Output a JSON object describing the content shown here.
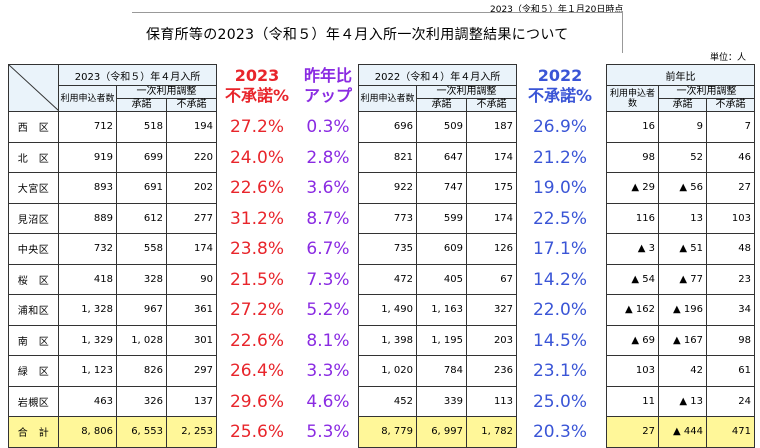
{
  "header": {
    "date": "2023（令和５）年１月20日時点",
    "title": "保育所等の2023（令和５）年４月入所一次利用調整結果について",
    "unit": "単位：人"
  },
  "table2023": {
    "period": "2023（令和５）年４月入所",
    "applicants": "利用申込者数",
    "group": "一次利用調整",
    "approved": "承諾",
    "rejected": "不承諾"
  },
  "table2022": {
    "period": "2022（令和４）年４月入所",
    "applicants": "利用申込者数",
    "group": "一次利用調整",
    "approved": "承諾",
    "rejected": "不承諾"
  },
  "tableDiff": {
    "period": "前年比",
    "applicants": "利用申込者数",
    "group": "一次利用調整",
    "approved": "承諾",
    "rejected": "不承諾"
  },
  "columns": {
    "rate2023": {
      "line1": "2023",
      "line2": "不承諾%"
    },
    "increase": {
      "line1": "昨年比",
      "line2": "アップ"
    },
    "rate2022": {
      "line1": "2022",
      "line2": "不承諾%"
    }
  },
  "rows": [
    {
      "ward": "西　区",
      "a23": "712",
      "b23": "518",
      "c23": "194",
      "r23": "27.2%",
      "up": "0.3%",
      "a22": "696",
      "b22": "509",
      "c22": "187",
      "r22": "26.9%",
      "da": "16",
      "db": "9",
      "dc": "7"
    },
    {
      "ward": "北　区",
      "a23": "919",
      "b23": "699",
      "c23": "220",
      "r23": "24.0%",
      "up": "2.8%",
      "a22": "821",
      "b22": "647",
      "c22": "174",
      "r22": "21.2%",
      "da": "98",
      "db": "52",
      "dc": "46"
    },
    {
      "ward": "大宮区",
      "a23": "893",
      "b23": "691",
      "c23": "202",
      "r23": "22.6%",
      "up": "3.6%",
      "a22": "922",
      "b22": "747",
      "c22": "175",
      "r22": "19.0%",
      "da": "▲ 29",
      "db": "▲ 56",
      "dc": "27"
    },
    {
      "ward": "見沼区",
      "a23": "889",
      "b23": "612",
      "c23": "277",
      "r23": "31.2%",
      "up": "8.7%",
      "a22": "773",
      "b22": "599",
      "c22": "174",
      "r22": "22.5%",
      "da": "116",
      "db": "13",
      "dc": "103"
    },
    {
      "ward": "中央区",
      "a23": "732",
      "b23": "558",
      "c23": "174",
      "r23": "23.8%",
      "up": "6.7%",
      "a22": "735",
      "b22": "609",
      "c22": "126",
      "r22": "17.1%",
      "da": "▲ 3",
      "db": "▲ 51",
      "dc": "48"
    },
    {
      "ward": "桜　区",
      "a23": "418",
      "b23": "328",
      "c23": "90",
      "r23": "21.5%",
      "up": "7.3%",
      "a22": "472",
      "b22": "405",
      "c22": "67",
      "r22": "14.2%",
      "da": "▲ 54",
      "db": "▲ 77",
      "dc": "23"
    },
    {
      "ward": "浦和区",
      "a23": "1, 328",
      "b23": "967",
      "c23": "361",
      "r23": "27.2%",
      "up": "5.2%",
      "a22": "1, 490",
      "b22": "1, 163",
      "c22": "327",
      "r22": "22.0%",
      "da": "▲ 162",
      "db": "▲ 196",
      "dc": "34"
    },
    {
      "ward": "南　区",
      "a23": "1, 329",
      "b23": "1, 028",
      "c23": "301",
      "r23": "22.6%",
      "up": "8.1%",
      "a22": "1, 398",
      "b22": "1, 195",
      "c22": "203",
      "r22": "14.5%",
      "da": "▲ 69",
      "db": "▲ 167",
      "dc": "98"
    },
    {
      "ward": "緑　区",
      "a23": "1, 123",
      "b23": "826",
      "c23": "297",
      "r23": "26.4%",
      "up": "3.3%",
      "a22": "1, 020",
      "b22": "784",
      "c22": "236",
      "r22": "23.1%",
      "da": "103",
      "db": "42",
      "dc": "61"
    },
    {
      "ward": "岩槻区",
      "a23": "463",
      "b23": "326",
      "c23": "137",
      "r23": "29.6%",
      "up": "4.6%",
      "a22": "452",
      "b22": "339",
      "c22": "113",
      "r22": "25.0%",
      "da": "11",
      "db": "▲ 13",
      "dc": "24"
    }
  ],
  "total": {
    "ward": "合　計",
    "a23": "8, 806",
    "b23": "6, 553",
    "c23": "2, 253",
    "r23": "25.6%",
    "up": "5.3%",
    "a22": "8, 779",
    "b22": "6, 997",
    "c22": "1, 782",
    "r22": "20.3%",
    "da": "27",
    "db": "▲ 444",
    "dc": "471"
  },
  "colors": {
    "red": "#e8252b",
    "purple": "#8a2be2",
    "blue": "#3a55d6",
    "header_bg": "#eaf3fa",
    "total_bg": "#fff799"
  }
}
